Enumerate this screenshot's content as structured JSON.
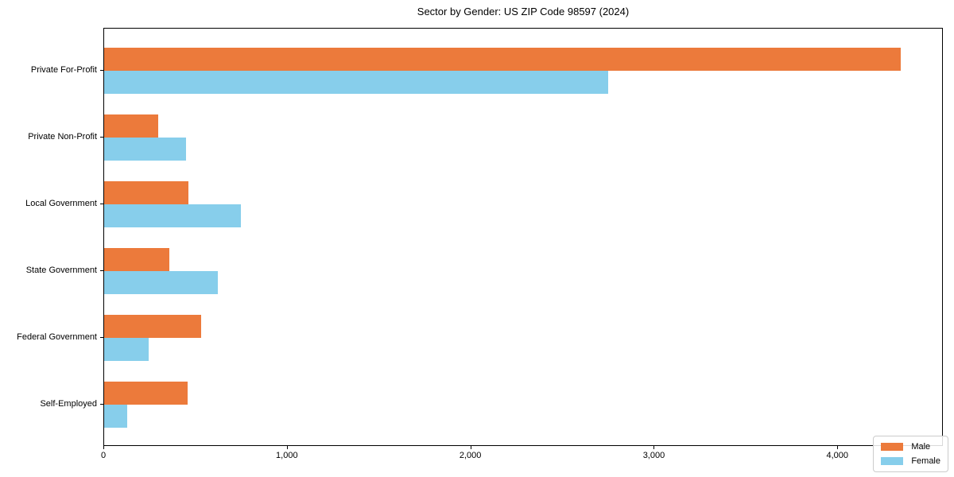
{
  "chart_data": {
    "type": "bar",
    "orientation": "horizontal",
    "title": "Sector by Gender: US ZIP Code 98597 (2024)",
    "categories": [
      "Private For-Profit",
      "Private Non-Profit",
      "Local Government",
      "State Government",
      "Federal Government",
      "Self-Employed"
    ],
    "series": [
      {
        "name": "Male",
        "color": "#ec7a3b",
        "values": [
          4350,
          295,
          460,
          355,
          530,
          455
        ]
      },
      {
        "name": "Female",
        "color": "#87ceeb",
        "values": [
          2750,
          445,
          745,
          620,
          245,
          125
        ]
      }
    ],
    "xlim": [
      0,
      4575
    ],
    "x_ticks": [
      0,
      1000,
      2000,
      3000,
      4000
    ],
    "x_tick_labels": [
      "0",
      "1,000",
      "2,000",
      "3,000",
      "4,000"
    ],
    "xlabel": "",
    "ylabel": "",
    "grid": false,
    "legend_position": "lower right",
    "plot_background": "#ffffff",
    "spine_color": "#000000"
  }
}
